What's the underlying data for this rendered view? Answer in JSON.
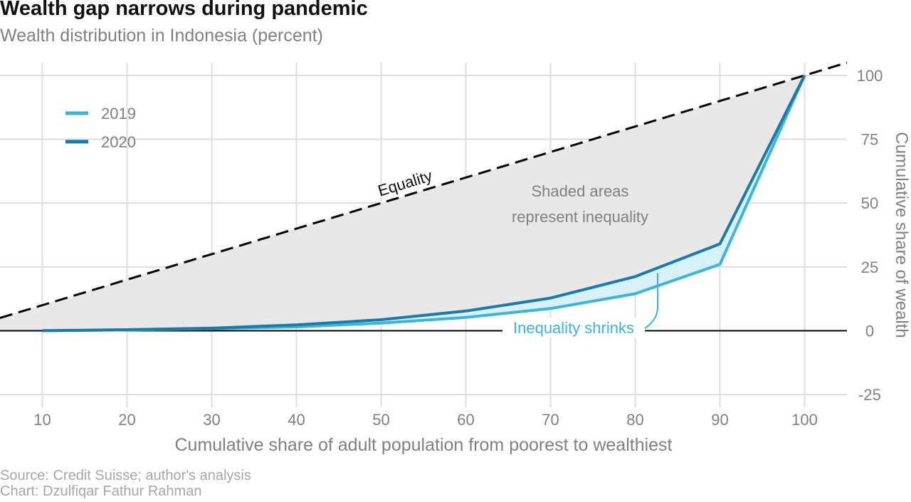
{
  "header": {
    "title": "Wealth gap narrows during pandemic",
    "subtitle": "Wealth distribution in Indonesia (percent)"
  },
  "footer": {
    "source": "Source: Credit Suisse; author's analysis",
    "credit": "Chart: Dzulfiqar Fathur Rahman"
  },
  "chart_data": {
    "type": "line",
    "xlabel": "Cumulative share of adult population from poorest to wealthiest",
    "ylabel": "Cumulative share of wealth",
    "xlim": [
      5,
      105
    ],
    "ylim": [
      -30,
      105
    ],
    "x_ticks": [
      10,
      20,
      30,
      40,
      50,
      60,
      70,
      80,
      90,
      100
    ],
    "y_ticks": [
      -25,
      0,
      25,
      50,
      75,
      100
    ],
    "grid": true,
    "legend_position": "top-left",
    "x": [
      10,
      20,
      30,
      40,
      50,
      60,
      70,
      80,
      90,
      100
    ],
    "series": [
      {
        "name": "2019",
        "color": "#3db4d8",
        "values": [
          0,
          0.3,
          0.8,
          1.5,
          3,
          5.2,
          8.7,
          14.5,
          26,
          100
        ]
      },
      {
        "name": "2020",
        "color": "#1a7bab",
        "values": [
          0,
          0.4,
          1,
          2.3,
          4.3,
          7.7,
          12.8,
          21.2,
          34,
          100
        ]
      }
    ],
    "equality_line": {
      "label": "Equality",
      "x": [
        5,
        105
      ],
      "y": [
        5,
        105
      ],
      "color": "#000000"
    },
    "annotations": {
      "shaded": "Shaded areas\nrepresent inequality",
      "shrinks": "Inequality shrinks"
    },
    "colors": {
      "shade": "#e8e8e8",
      "shrink_fill": "#d8f0f8",
      "grid": "#dedede",
      "tick_text": "#808080"
    }
  }
}
